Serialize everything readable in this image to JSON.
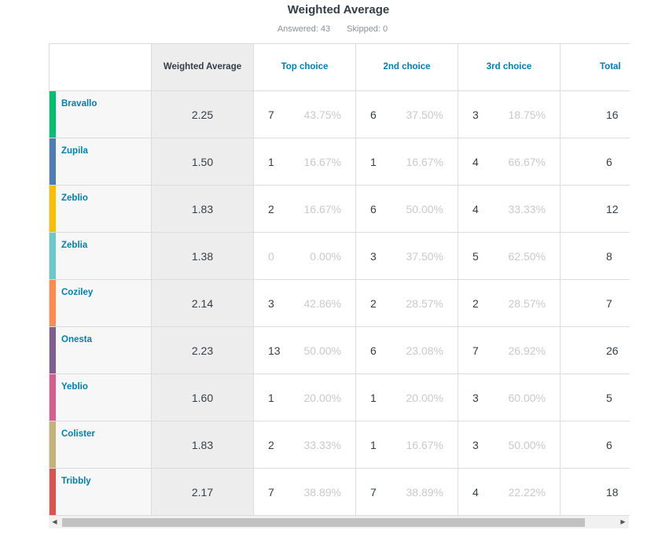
{
  "title": "Weighted Average",
  "stats": {
    "answered": "Answered: 43",
    "skipped": "Skipped: 0"
  },
  "headers": {
    "corner": "",
    "weighted": "Weighted Average",
    "c1": "Top choice",
    "c2": "2nd choice",
    "c3": "3rd choice",
    "total": "Total"
  },
  "rows": [
    {
      "label": "Bravallo",
      "color": "#00bf6f",
      "weighted": "2.25",
      "c1": "7",
      "p1": "43.75%",
      "c2": "6",
      "p2": "37.50%",
      "c3": "3",
      "p3": "18.75%",
      "total": "16"
    },
    {
      "label": "Zupila",
      "color": "#507cb6",
      "weighted": "1.50",
      "c1": "1",
      "p1": "16.67%",
      "c2": "1",
      "p2": "16.67%",
      "c3": "4",
      "p3": "66.67%",
      "total": "6"
    },
    {
      "label": "Zeblio",
      "color": "#f9be00",
      "weighted": "1.83",
      "c1": "2",
      "p1": "16.67%",
      "c2": "6",
      "p2": "50.00%",
      "c3": "4",
      "p3": "33.33%",
      "total": "12"
    },
    {
      "label": "Zeblia",
      "color": "#6bc8cd",
      "weighted": "1.38",
      "c1": "0",
      "p1": "0.00%",
      "c2": "3",
      "p2": "37.50%",
      "c3": "5",
      "p3": "62.50%",
      "total": "8"
    },
    {
      "label": "Coziley",
      "color": "#ff8b4f",
      "weighted": "2.14",
      "c1": "3",
      "p1": "42.86%",
      "c2": "2",
      "p2": "28.57%",
      "c3": "2",
      "p3": "28.57%",
      "total": "7"
    },
    {
      "label": "Onesta",
      "color": "#7d5e90",
      "weighted": "2.23",
      "c1": "13",
      "p1": "50.00%",
      "c2": "6",
      "p2": "23.08%",
      "c3": "7",
      "p3": "26.92%",
      "total": "26"
    },
    {
      "label": "Yeblio",
      "color": "#d25f90",
      "weighted": "1.60",
      "c1": "1",
      "p1": "20.00%",
      "c2": "1",
      "p2": "20.00%",
      "c3": "3",
      "p3": "60.00%",
      "total": "5"
    },
    {
      "label": "Colister",
      "color": "#c4b27d",
      "weighted": "1.83",
      "c1": "2",
      "p1": "33.33%",
      "c2": "1",
      "p2": "16.67%",
      "c3": "3",
      "p3": "50.00%",
      "total": "6"
    },
    {
      "label": "Tribbly",
      "color": "#d9534f",
      "weighted": "2.17",
      "c1": "7",
      "p1": "38.89%",
      "c2": "7",
      "p2": "38.89%",
      "c3": "4",
      "p3": "22.22%",
      "total": "18"
    }
  ],
  "scrollbar": {
    "left_arrow": "◀",
    "right_arrow": "▶"
  }
}
